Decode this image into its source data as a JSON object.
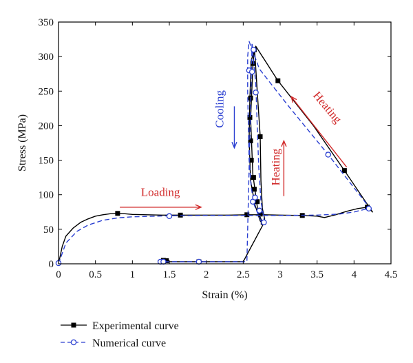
{
  "chart_data": {
    "type": "line",
    "title": "",
    "xlabel": "Strain (%)",
    "ylabel": "Stress (MPa)",
    "xlim": [
      0,
      4.5
    ],
    "ylim": [
      0,
      350
    ],
    "x_ticks": [
      "0",
      "0.5",
      "1",
      "1.5",
      "2",
      "2.5",
      "3",
      "3.5",
      "4",
      "4.5"
    ],
    "y_ticks": [
      "0",
      "50",
      "100",
      "150",
      "200",
      "250",
      "300",
      "350"
    ],
    "grid": false,
    "legend_position": "bottom-left",
    "series": [
      {
        "name": "Experimental curve",
        "color": "#000000",
        "line": "solid",
        "marker": "filled-square",
        "points": [
          [
            0,
            0
          ],
          [
            0.05,
            25
          ],
          [
            0.1,
            40
          ],
          [
            0.2,
            52
          ],
          [
            0.3,
            60
          ],
          [
            0.4,
            65
          ],
          [
            0.5,
            69
          ],
          [
            0.6,
            71
          ],
          [
            0.7,
            72.5
          ],
          [
            0.8,
            73
          ],
          [
            0.9,
            72.5
          ],
          [
            1.0,
            71.5
          ],
          [
            1.2,
            71
          ],
          [
            1.4,
            70.5
          ],
          [
            1.65,
            70.5
          ],
          [
            2.0,
            70.5
          ],
          [
            2.3,
            70.5
          ],
          [
            2.55,
            71
          ],
          [
            2.8,
            71
          ],
          [
            3.0,
            70.5
          ],
          [
            3.3,
            70
          ],
          [
            3.5,
            69
          ],
          [
            3.6,
            67
          ],
          [
            3.75,
            71
          ],
          [
            3.9,
            76
          ],
          [
            4.05,
            80
          ],
          [
            4.18,
            82
          ],
          [
            4.25,
            75
          ],
          [
            3.87,
            135
          ],
          [
            3.45,
            200
          ],
          [
            2.97,
            265
          ],
          [
            2.67,
            315
          ],
          [
            2.61,
            295
          ],
          [
            2.59,
            240
          ],
          [
            2.58,
            180
          ],
          [
            2.6,
            120
          ],
          [
            2.66,
            85
          ],
          [
            2.73,
            62
          ],
          [
            2.77,
            58
          ],
          [
            2.78,
            60
          ],
          [
            2.79,
            65
          ],
          [
            2.76,
            80
          ],
          [
            2.74,
            120
          ],
          [
            2.73,
            185
          ],
          [
            2.69,
            250
          ],
          [
            2.66,
            300
          ],
          [
            2.65,
            312
          ],
          [
            2.63,
            285
          ],
          [
            2.6,
            210
          ],
          [
            2.63,
            130
          ],
          [
            2.7,
            75
          ],
          [
            2.77,
            57
          ],
          [
            2.5,
            3
          ],
          [
            1.9,
            3
          ],
          [
            1.5,
            3
          ],
          [
            1.4,
            3
          ],
          [
            1.35,
            5
          ],
          [
            1.5,
            5
          ]
        ],
        "markers": [
          [
            0.8,
            73
          ],
          [
            1.65,
            70.5
          ],
          [
            2.55,
            71
          ],
          [
            3.3,
            70
          ],
          [
            4.18,
            82
          ],
          [
            3.87,
            135
          ],
          [
            2.97,
            265
          ],
          [
            2.65,
            310
          ],
          [
            2.63,
            290
          ],
          [
            2.6,
            240
          ],
          [
            2.59,
            212
          ],
          [
            2.6,
            178
          ],
          [
            2.61,
            150
          ],
          [
            2.64,
            125
          ],
          [
            2.65,
            108
          ],
          [
            2.69,
            90
          ],
          [
            2.73,
            72
          ],
          [
            2.77,
            60
          ],
          [
            2.73,
            184
          ],
          [
            1.42,
            5
          ],
          [
            1.46,
            4.5
          ],
          [
            1.9,
            3
          ]
        ]
      },
      {
        "name": "Numerical curve",
        "color": "#2a3fd1",
        "line": "dashed",
        "marker": "open-circle",
        "points": [
          [
            0,
            0
          ],
          [
            0.1,
            30
          ],
          [
            0.25,
            47
          ],
          [
            0.4,
            56
          ],
          [
            0.6,
            63
          ],
          [
            0.8,
            66.5
          ],
          [
            1.0,
            68
          ],
          [
            1.5,
            69.5
          ],
          [
            2.0,
            70
          ],
          [
            2.5,
            70
          ],
          [
            3.0,
            70
          ],
          [
            3.5,
            70.5
          ],
          [
            3.8,
            72
          ],
          [
            4.0,
            75
          ],
          [
            4.15,
            79
          ],
          [
            4.22,
            80
          ],
          [
            3.65,
            158
          ],
          [
            3.1,
            230
          ],
          [
            2.72,
            282
          ],
          [
            2.58,
            322
          ],
          [
            2.56,
            300
          ],
          [
            2.56,
            250
          ],
          [
            2.57,
            200
          ],
          [
            2.58,
            150
          ],
          [
            2.61,
            110
          ],
          [
            2.65,
            85
          ],
          [
            2.74,
            62
          ],
          [
            2.79,
            60
          ],
          [
            2.74,
            90
          ],
          [
            2.71,
            140
          ],
          [
            2.69,
            200
          ],
          [
            2.67,
            260
          ],
          [
            2.63,
            305
          ],
          [
            2.62,
            320
          ],
          [
            2.55,
            3
          ],
          [
            1.9,
            3
          ],
          [
            1.4,
            3
          ]
        ],
        "markers": [
          [
            0,
            1
          ],
          [
            1.5,
            69
          ],
          [
            4.2,
            80
          ],
          [
            3.65,
            158
          ],
          [
            2.58,
            280
          ],
          [
            2.62,
            278
          ],
          [
            2.67,
            248
          ],
          [
            2.64,
            310
          ],
          [
            2.63,
            90
          ],
          [
            2.66,
            96
          ],
          [
            2.72,
            77
          ],
          [
            2.78,
            60
          ],
          [
            1.9,
            3
          ],
          [
            1.38,
            3
          ],
          [
            1.42,
            3
          ]
        ]
      }
    ],
    "annotations": [
      {
        "text": "Loading",
        "color": "#d12a2a",
        "x": 1.38,
        "y": 98,
        "rotation": 0,
        "arrow": {
          "from": [
            0.83,
            82
          ],
          "to": [
            1.93,
            82
          ]
        }
      },
      {
        "text": "Cooling",
        "color": "#2a3fd1",
        "x": 2.23,
        "y": 224,
        "rotation": -90,
        "arrow": {
          "from": [
            2.38,
            228
          ],
          "to": [
            2.38,
            168
          ]
        }
      },
      {
        "text": "Heating",
        "color": "#d12a2a",
        "x": 2.99,
        "y": 140,
        "rotation": -90,
        "arrow": {
          "from": [
            3.05,
            98
          ],
          "to": [
            3.05,
            178
          ]
        }
      },
      {
        "text": "Heating",
        "color": "#d12a2a",
        "x": 3.6,
        "y": 223,
        "rotation": 50,
        "arrow": {
          "from": [
            3.9,
            140
          ],
          "to": [
            3.15,
            242
          ]
        }
      }
    ]
  }
}
